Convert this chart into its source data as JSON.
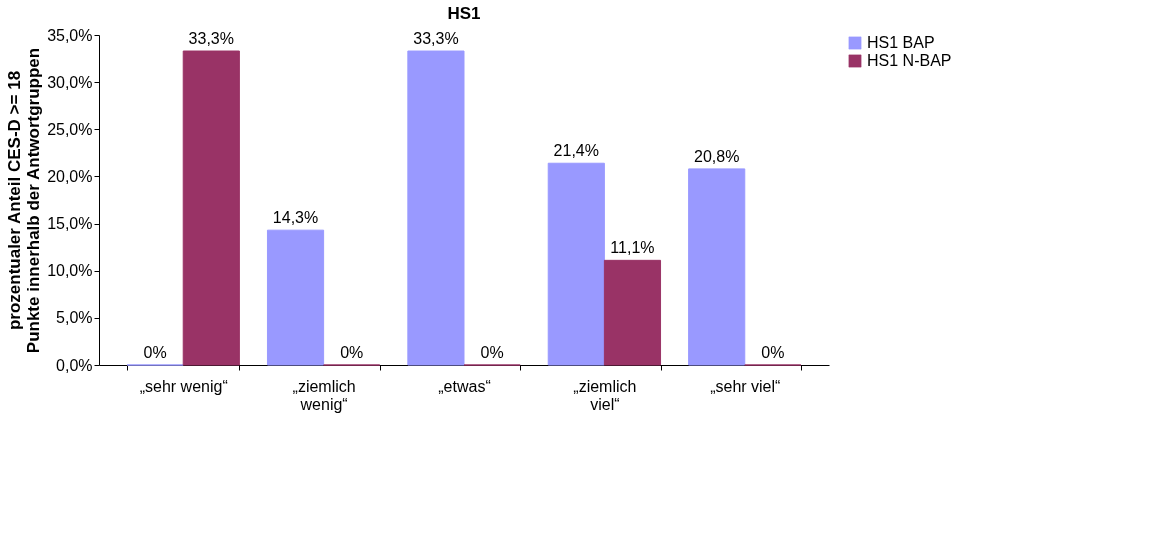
{
  "chart_data": {
    "type": "bar",
    "title": "HS1",
    "ylabel": "prozentualer Anteil CES-D >= 18\nPunkte innerhalb der Antwortgruppen",
    "categories": [
      "„sehr wenig“",
      "„ziemlich\nwenig“",
      "„etwas“",
      "„ziemlich\nviel“",
      "„sehr viel“"
    ],
    "series": [
      {
        "name": "HS1 BAP",
        "color": "#9999ff",
        "values": [
          0,
          14.3,
          33.3,
          21.4,
          20.8
        ],
        "value_labels": [
          "0%",
          "14,3%",
          "33,3%",
          "21,4%",
          "20,8%"
        ]
      },
      {
        "name": "HS1 N-BAP",
        "color": "#993366",
        "values": [
          33.3,
          0,
          0,
          11.1,
          0
        ],
        "value_labels": [
          "33,3%",
          "0%",
          "0%",
          "11,1%",
          "0%"
        ]
      }
    ],
    "ylim": [
      0,
      35
    ],
    "yticks": [
      {
        "value": 0,
        "label": "0,0%"
      },
      {
        "value": 5,
        "label": "5,0%"
      },
      {
        "value": 10,
        "label": "10,0%"
      },
      {
        "value": 15,
        "label": "15,0%"
      },
      {
        "value": 20,
        "label": "20,0%"
      },
      {
        "value": 25,
        "label": "25,0%"
      },
      {
        "value": 30,
        "label": "30,0%"
      },
      {
        "value": 35,
        "label": "35,0%"
      }
    ],
    "grid": false,
    "legend": "right"
  }
}
